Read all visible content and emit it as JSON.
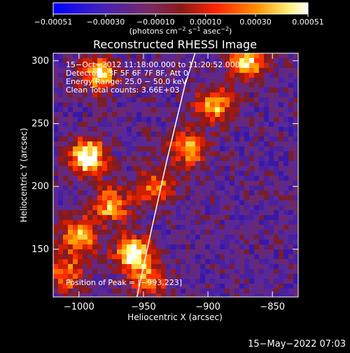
{
  "chart_data": {
    "type": "heatmap",
    "title": "Reconstructed RHESSI Image",
    "xlabel": "Heliocentric X (arcsec)",
    "ylabel": "Heliocentric Y (arcsec)",
    "xlim": [
      -1020,
      -830
    ],
    "ylim": [
      112,
      306
    ],
    "x_ticks": [
      -1000,
      -950,
      -900,
      -850
    ],
    "x_tick_labels": [
      "−1000",
      "−950",
      "−900",
      "−850"
    ],
    "y_ticks": [
      150,
      200,
      250,
      300
    ],
    "y_tick_labels": [
      "150",
      "200",
      "250",
      "300"
    ],
    "colorbar": {
      "ticks": [
        -0.00051,
        -0.0003,
        -0.0001,
        0.0001,
        0.0003,
        0.00051
      ],
      "tick_labels": [
        "−0.00051",
        "−0.00030",
        "−0.00010",
        "0.00010",
        "0.00030",
        "0.00051"
      ],
      "label_main": "(photons cm",
      "label_sup1": "−2",
      "label_mid": " s",
      "label_sup2": "−1",
      "label_end": " asec",
      "label_sup3": "−2",
      "label_close": ")",
      "colors": [
        "#0000ff",
        "#5a1fa0",
        "#7a2828",
        "#ff2a00",
        "#ff9a00",
        "#ffff88",
        "#ffffff"
      ]
    },
    "annotations": [
      "15−Oct−2012 11:18:00.000 to 11:20:52.000",
      "Detectors: 3F 5F 6F 7F 8F, Att 0",
      "Energy Range: 25.0 − 50.0 keV",
      "Clean     Total counts: 3.66E+03"
    ],
    "peak_label": "Position of Peak = [−993,223]",
    "peak_position": [
      -993,
      223
    ],
    "bright_sources": [
      {
        "x": -993,
        "y": 223,
        "intensity": 1.0
      },
      {
        "x": -958,
        "y": 146,
        "intensity": 0.95
      },
      {
        "x": -985,
        "y": 290,
        "intensity": 0.8
      },
      {
        "x": -1000,
        "y": 160,
        "intensity": 0.75
      },
      {
        "x": -975,
        "y": 185,
        "intensity": 0.7
      },
      {
        "x": -940,
        "y": 200,
        "intensity": 0.6
      },
      {
        "x": -915,
        "y": 230,
        "intensity": 0.65
      },
      {
        "x": -895,
        "y": 265,
        "intensity": 0.7
      },
      {
        "x": -870,
        "y": 300,
        "intensity": 0.85
      },
      {
        "x": -945,
        "y": 125,
        "intensity": 0.55
      },
      {
        "x": -1010,
        "y": 130,
        "intensity": 0.6
      }
    ],
    "limb_curve": [
      [
        -955,
        112
      ],
      [
        -945,
        160
      ],
      [
        -932,
        220
      ],
      [
        -918,
        280
      ],
      [
        -910,
        306
      ]
    ],
    "footer_date": "15−May−2022 07:03"
  }
}
